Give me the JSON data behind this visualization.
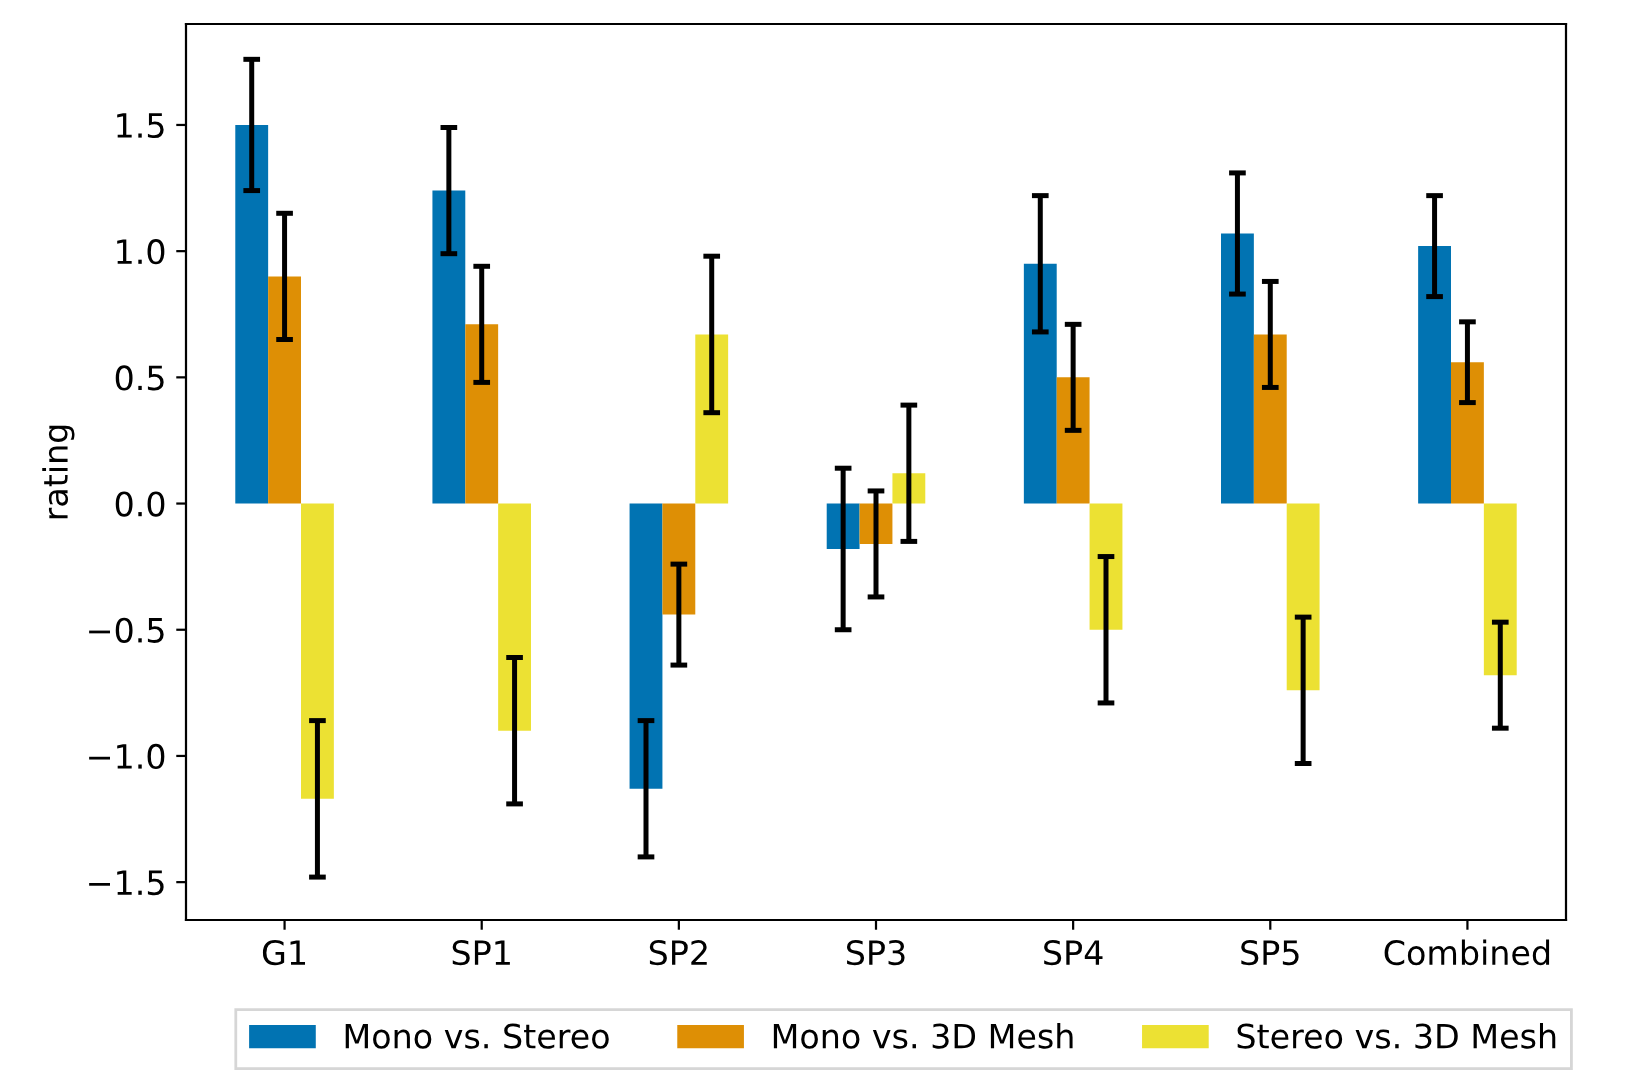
{
  "chart_data": {
    "type": "bar",
    "ylabel": "rating",
    "categories": [
      "G1",
      "SP1",
      "SP2",
      "SP3",
      "SP4",
      "SP5",
      "Combined"
    ],
    "series": [
      {
        "name": "Mono vs. Stereo",
        "color": "#0173b2",
        "values": [
          1.5,
          1.24,
          -1.13,
          -0.18,
          0.95,
          1.07,
          1.02
        ],
        "errors": [
          0.26,
          0.25,
          0.27,
          0.32,
          0.27,
          0.24,
          0.2
        ]
      },
      {
        "name": "Mono vs. 3D Mesh",
        "color": "#de8f05",
        "values": [
          0.9,
          0.71,
          -0.44,
          -0.16,
          0.5,
          0.67,
          0.56
        ],
        "errors": [
          0.25,
          0.23,
          0.2,
          0.21,
          0.21,
          0.21,
          0.16
        ]
      },
      {
        "name": "Stereo vs. 3D Mesh",
        "color": "#ece133",
        "values": [
          -1.17,
          -0.9,
          0.67,
          0.12,
          -0.5,
          -0.74,
          -0.68
        ],
        "errors": [
          0.31,
          0.29,
          0.31,
          0.27,
          0.29,
          0.29,
          0.21
        ]
      }
    ],
    "ylim": [
      -1.65,
      1.9
    ],
    "yticks": [
      {
        "value": -1.5,
        "label": "−1.5"
      },
      {
        "value": -1.0,
        "label": "−1.0"
      },
      {
        "value": -0.5,
        "label": "−0.5"
      },
      {
        "value": 0.0,
        "label": "0.0"
      },
      {
        "value": 0.5,
        "label": "0.5"
      },
      {
        "value": 1.0,
        "label": "1.0"
      },
      {
        "value": 1.5,
        "label": "1.5"
      }
    ],
    "grid": false,
    "legend": "bottom"
  }
}
